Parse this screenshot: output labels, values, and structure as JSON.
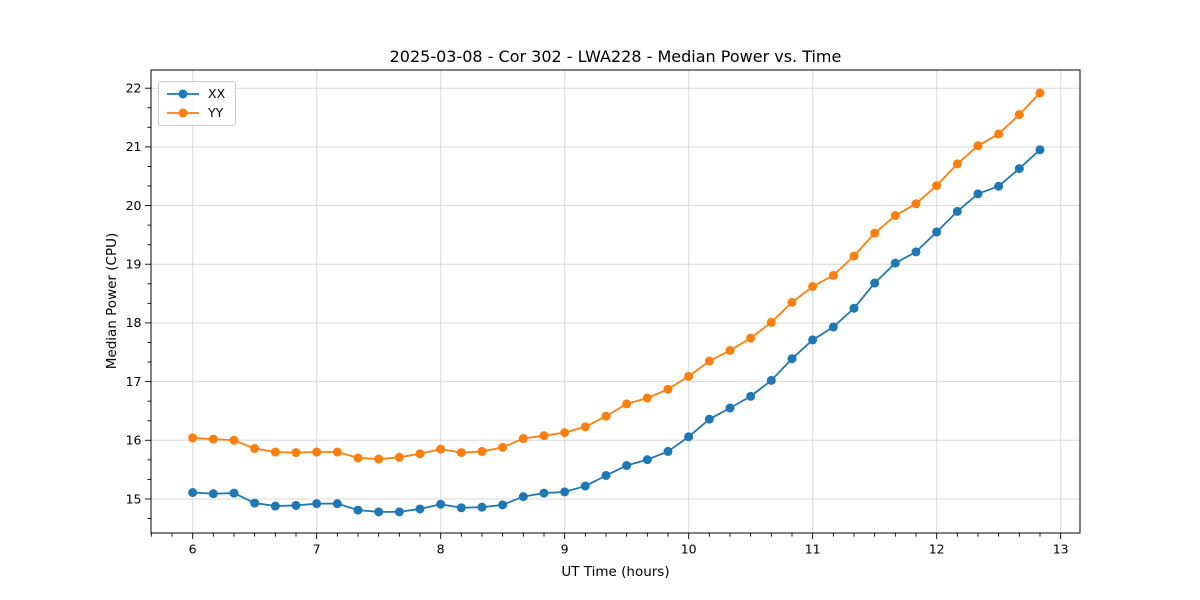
{
  "chart_data": {
    "type": "line",
    "title": "2025-03-08 - Cor 302 - LWA228 - Median Power vs. Time",
    "xlabel": "UT Time (hours)",
    "ylabel": "Median Power (CPU)",
    "x": [
      6.0,
      6.1667,
      6.3333,
      6.5,
      6.6667,
      6.8333,
      7.0,
      7.1667,
      7.3333,
      7.5,
      7.6667,
      7.8333,
      8.0,
      8.1667,
      8.3333,
      8.5,
      8.6667,
      8.8333,
      9.0,
      9.1667,
      9.3333,
      9.5,
      9.6667,
      9.8333,
      10.0,
      10.1667,
      10.3333,
      10.5,
      10.6667,
      10.8333,
      11.0,
      11.1667,
      11.3333,
      11.5,
      11.6667,
      11.8333,
      12.0,
      12.1667,
      12.3333,
      12.5,
      12.6667,
      12.8333
    ],
    "series": [
      {
        "name": "XX",
        "color": "#1f77b4",
        "values": [
          15.11,
          15.09,
          15.1,
          14.93,
          14.88,
          14.89,
          14.92,
          14.92,
          14.81,
          14.78,
          14.78,
          14.83,
          14.91,
          14.85,
          14.86,
          14.9,
          15.04,
          15.1,
          15.12,
          15.22,
          15.4,
          15.57,
          15.67,
          15.81,
          16.06,
          16.36,
          16.55,
          16.75,
          17.02,
          17.39,
          17.71,
          17.93,
          18.25,
          18.68,
          19.02,
          19.21,
          19.55,
          19.9,
          20.2,
          20.33,
          20.63,
          20.95
        ]
      },
      {
        "name": "YY",
        "color": "#ff7f0e",
        "values": [
          16.04,
          16.02,
          16.0,
          15.86,
          15.8,
          15.79,
          15.8,
          15.8,
          15.7,
          15.68,
          15.71,
          15.77,
          15.85,
          15.79,
          15.81,
          15.88,
          16.03,
          16.08,
          16.13,
          16.23,
          16.41,
          16.62,
          16.72,
          16.87,
          17.09,
          17.35,
          17.53,
          17.74,
          18.01,
          18.35,
          18.62,
          18.81,
          19.14,
          19.53,
          19.83,
          20.03,
          20.34,
          20.71,
          21.02,
          21.22,
          21.55,
          21.92
        ]
      }
    ],
    "xlim": [
      5.664,
      13.156
    ],
    "ylim": [
      14.42,
      22.31
    ],
    "xticks": [
      6,
      7,
      8,
      9,
      10,
      11,
      12,
      13
    ],
    "yticks": [
      15,
      16,
      17,
      18,
      19,
      20,
      21,
      22
    ],
    "x_minor_step": 0.16667,
    "y_minor_step": 0.33333,
    "grid": "major",
    "grid_color": "#d9d9d9",
    "legend_position": "upper-left",
    "marker": "circle",
    "marker_size": 4.5,
    "line_width": 1.8
  }
}
